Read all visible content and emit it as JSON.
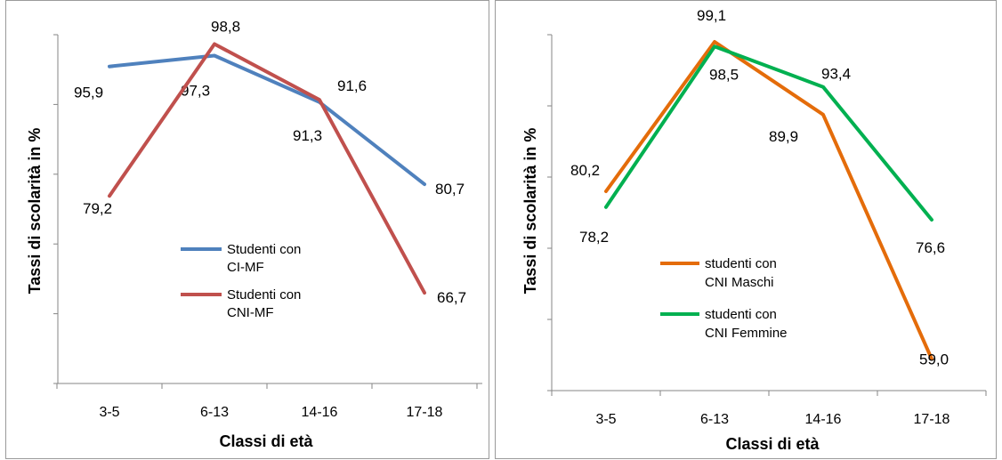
{
  "chart_data": [
    {
      "type": "line",
      "categories": [
        "3-5",
        "6-13",
        "14-16",
        "17-18"
      ],
      "xlabel": "Classi di età",
      "ylabel": "Tassi di scolarità in %",
      "ylim": [
        55,
        100
      ],
      "grid": false,
      "legend_position": "center",
      "series": [
        {
          "name": "Studenti con CI-MF",
          "legend_lines": [
            "Studenti con",
            "CI-MF"
          ],
          "color": "#4f81bd",
          "values": [
            95.9,
            97.3,
            91.3,
            80.7
          ],
          "labels": [
            "95,9",
            "97,3",
            "91,3",
            "80,7"
          ]
        },
        {
          "name": "Studenti con CNI-MF",
          "legend_lines": [
            "Studenti con",
            "CNI-MF"
          ],
          "color": "#c0504d",
          "values": [
            79.2,
            98.8,
            91.6,
            66.7
          ],
          "labels": [
            "79,2",
            "98,8",
            "91,6",
            "66,7"
          ]
        }
      ]
    },
    {
      "type": "line",
      "categories": [
        "3-5",
        "6-13",
        "14-16",
        "17-18"
      ],
      "xlabel": "Classi di età",
      "ylabel": "Tassi di scolarità in %",
      "ylim": [
        55,
        100
      ],
      "grid": false,
      "legend_position": "center-right",
      "series": [
        {
          "name": "studenti con CNI Maschi",
          "legend_lines": [
            "studenti con",
            "CNI Maschi"
          ],
          "color": "#e46c0a",
          "values": [
            80.2,
            99.1,
            89.9,
            59.0
          ],
          "labels": [
            "80,2",
            "99,1",
            "89,9",
            "59,0"
          ]
        },
        {
          "name": "studenti con CNI Femmine",
          "legend_lines": [
            "studenti con",
            "CNI Femmine"
          ],
          "color": "#00b050",
          "values": [
            78.2,
            98.5,
            93.4,
            76.6
          ],
          "labels": [
            "78,2",
            "98,5",
            "93,4",
            "76,6"
          ]
        }
      ]
    }
  ]
}
